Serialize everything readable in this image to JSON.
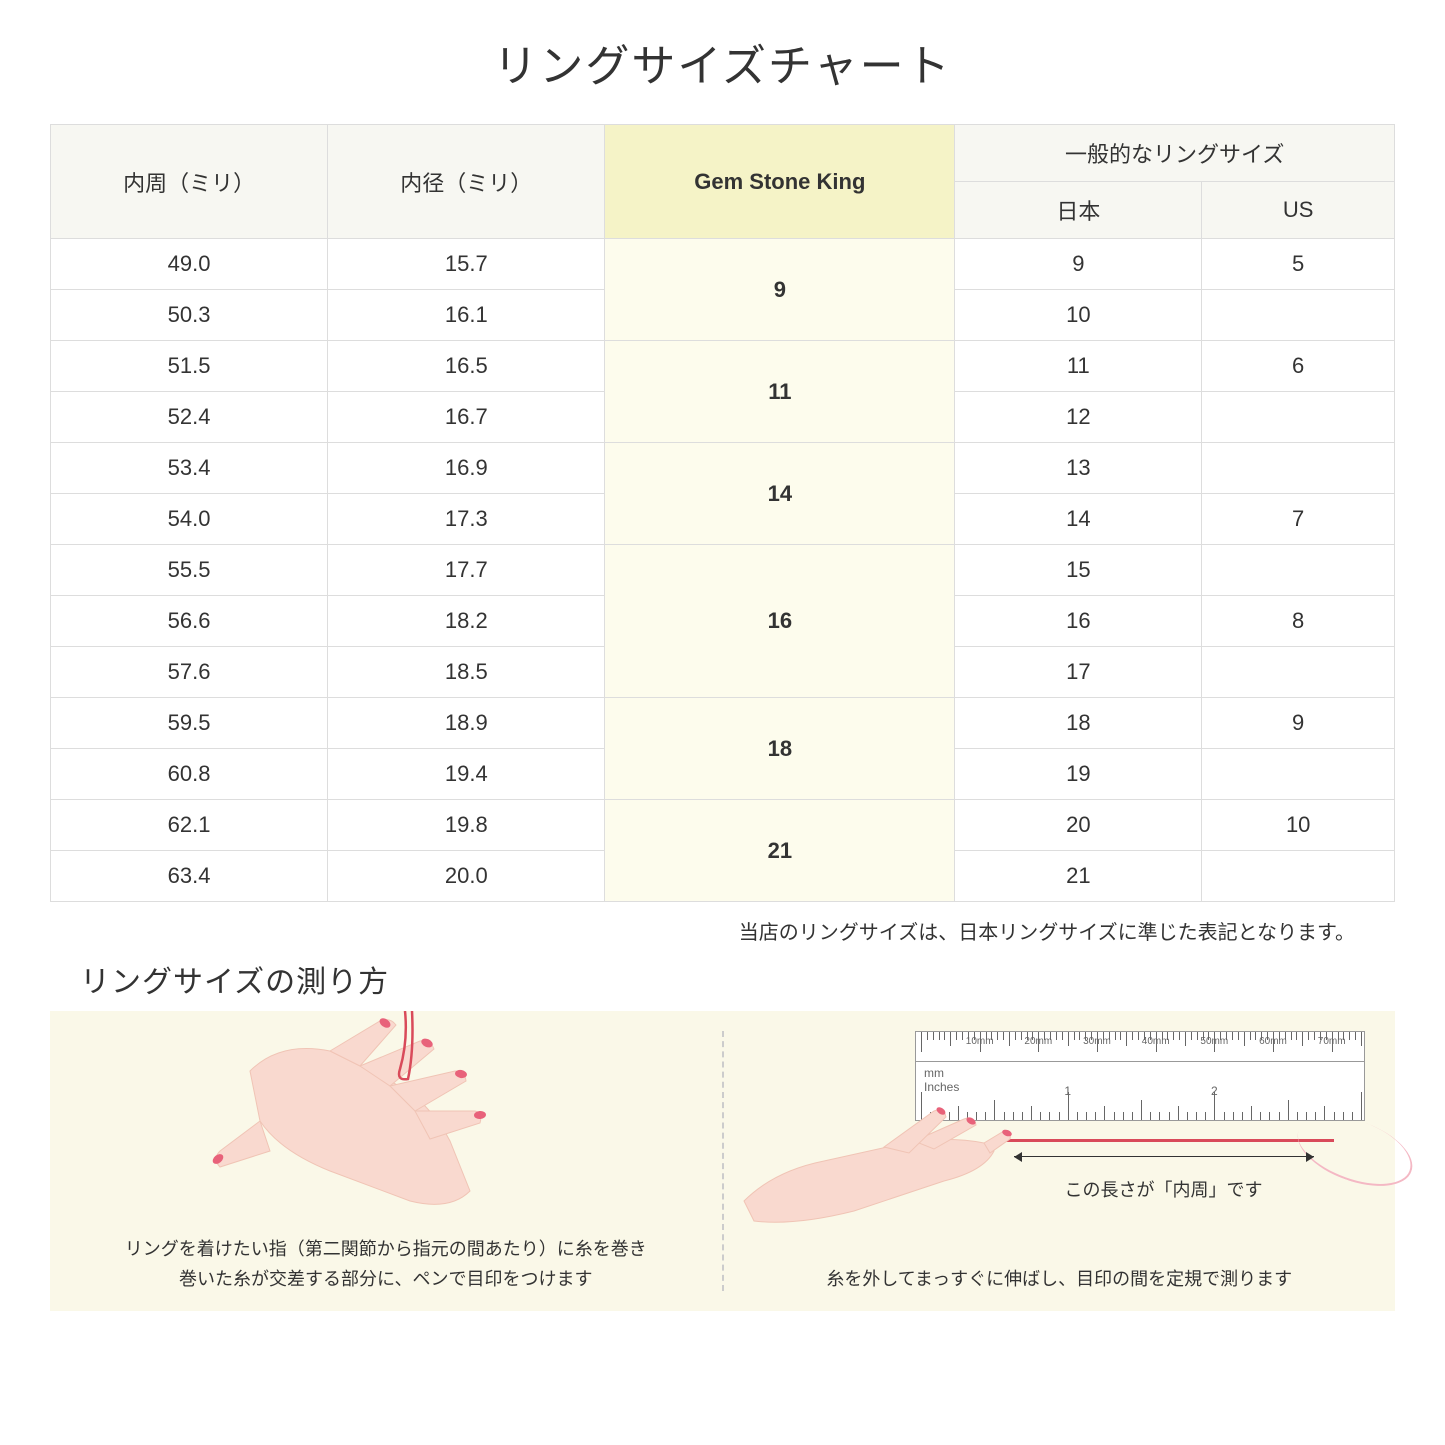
{
  "title": "リングサイズチャート",
  "headers": {
    "circumference": "内周（ミリ）",
    "diameter": "内径（ミリ）",
    "gsk": "Gem Stone King",
    "common": "一般的なリングサイズ",
    "japan": "日本",
    "us": "US"
  },
  "groups": [
    {
      "gsk": "9",
      "rows": [
        {
          "c": "49.0",
          "d": "15.7",
          "jp": "9",
          "us": "5"
        },
        {
          "c": "50.3",
          "d": "16.1",
          "jp": "10",
          "us": ""
        }
      ]
    },
    {
      "gsk": "11",
      "rows": [
        {
          "c": "51.5",
          "d": "16.5",
          "jp": "11",
          "us": "6"
        },
        {
          "c": "52.4",
          "d": "16.7",
          "jp": "12",
          "us": ""
        }
      ]
    },
    {
      "gsk": "14",
      "rows": [
        {
          "c": "53.4",
          "d": "16.9",
          "jp": "13",
          "us": ""
        },
        {
          "c": "54.0",
          "d": "17.3",
          "jp": "14",
          "us": "7"
        }
      ]
    },
    {
      "gsk": "16",
      "rows": [
        {
          "c": "55.5",
          "d": "17.7",
          "jp": "15",
          "us": ""
        },
        {
          "c": "56.6",
          "d": "18.2",
          "jp": "16",
          "us": "8"
        },
        {
          "c": "57.6",
          "d": "18.5",
          "jp": "17",
          "us": ""
        }
      ]
    },
    {
      "gsk": "18",
      "rows": [
        {
          "c": "59.5",
          "d": "18.9",
          "jp": "18",
          "us": "9"
        },
        {
          "c": "60.8",
          "d": "19.4",
          "jp": "19",
          "us": ""
        }
      ]
    },
    {
      "gsk": "21",
      "rows": [
        {
          "c": "62.1",
          "d": "19.8",
          "jp": "20",
          "us": "10"
        },
        {
          "c": "63.4",
          "d": "20.0",
          "jp": "21",
          "us": ""
        }
      ]
    }
  ],
  "note": "当店のリングサイズは、日本リングサイズに準じた表記となります。",
  "subtitle": "リングサイズの測り方",
  "howto": {
    "left_caption": "リングを着けたい指（第二関節から指元の間あたり）に糸を巻き\n巻いた糸が交差する部分に、ペンで目印をつけます",
    "right_caption": "糸を外してまっすぐに伸ばし、目印の間を定規で測ります",
    "measure_label": "この長さが「内周」です",
    "ruler_mm_label": "mm",
    "ruler_in_label": "Inches",
    "ruler_mm_marks": [
      "10mm",
      "20mm",
      "30mm",
      "40mm",
      "50mm",
      "60mm",
      "70mm"
    ],
    "ruler_in_marks": [
      "1",
      "2"
    ]
  },
  "colors": {
    "header_bg": "#f7f7f2",
    "gsk_header_bg": "#f5f3c7",
    "gsk_cell_bg": "#fdfced",
    "howto_bg": "#faf8e8",
    "skin": "#f9d9cf",
    "skin_dark": "#f0c4b5",
    "nail": "#e8627a",
    "thread": "#d94a5a",
    "thread_light": "#f4b8c4"
  }
}
